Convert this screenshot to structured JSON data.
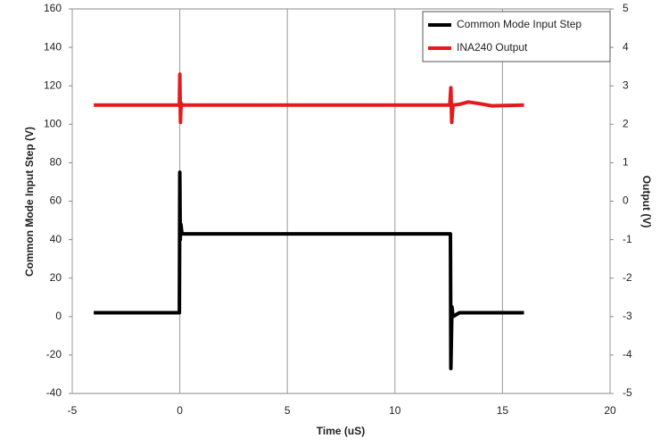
{
  "chart_data": {
    "type": "line",
    "xlabel": "Time (uS)",
    "ylabel": "Common Mode Input Step (V)",
    "y2label": "Output (V)",
    "xlim": [
      -5,
      20
    ],
    "xticks": [
      -5,
      0,
      5,
      10,
      15,
      20
    ],
    "ylim": [
      -40,
      160
    ],
    "yticks": [
      -40,
      -20,
      0,
      20,
      40,
      60,
      80,
      100,
      120,
      140,
      160
    ],
    "y2lim": [
      -5,
      5
    ],
    "y2ticks": [
      -5,
      -4,
      -3,
      -2,
      -1,
      0,
      1,
      2,
      3,
      4,
      5
    ],
    "xgrid": true,
    "legend": "upper right",
    "series": [
      {
        "name": "Common Mode Input Step",
        "color": "#000000",
        "x": [
          -4,
          -0.02,
          0,
          0.02,
          0.05,
          0.1,
          0.3,
          12.55,
          12.58,
          12.6,
          12.65,
          12.7,
          13,
          16
        ],
        "values": [
          2,
          2,
          75,
          40,
          48,
          43,
          43,
          43,
          43,
          -27,
          5,
          0,
          2,
          2
        ]
      },
      {
        "name": "INA240 Output",
        "color": "#e41a1c",
        "axis": "y2",
        "x": [
          -4,
          -0.02,
          0,
          0.03,
          0.06,
          0.1,
          12.55,
          12.6,
          12.64,
          12.7,
          13,
          13.4,
          14,
          14.5,
          16
        ],
        "values": [
          2.5,
          2.5,
          3.3,
          2.05,
          2.55,
          2.5,
          2.5,
          2.95,
          2.05,
          2.5,
          2.52,
          2.58,
          2.53,
          2.48,
          2.5
        ]
      }
    ]
  }
}
